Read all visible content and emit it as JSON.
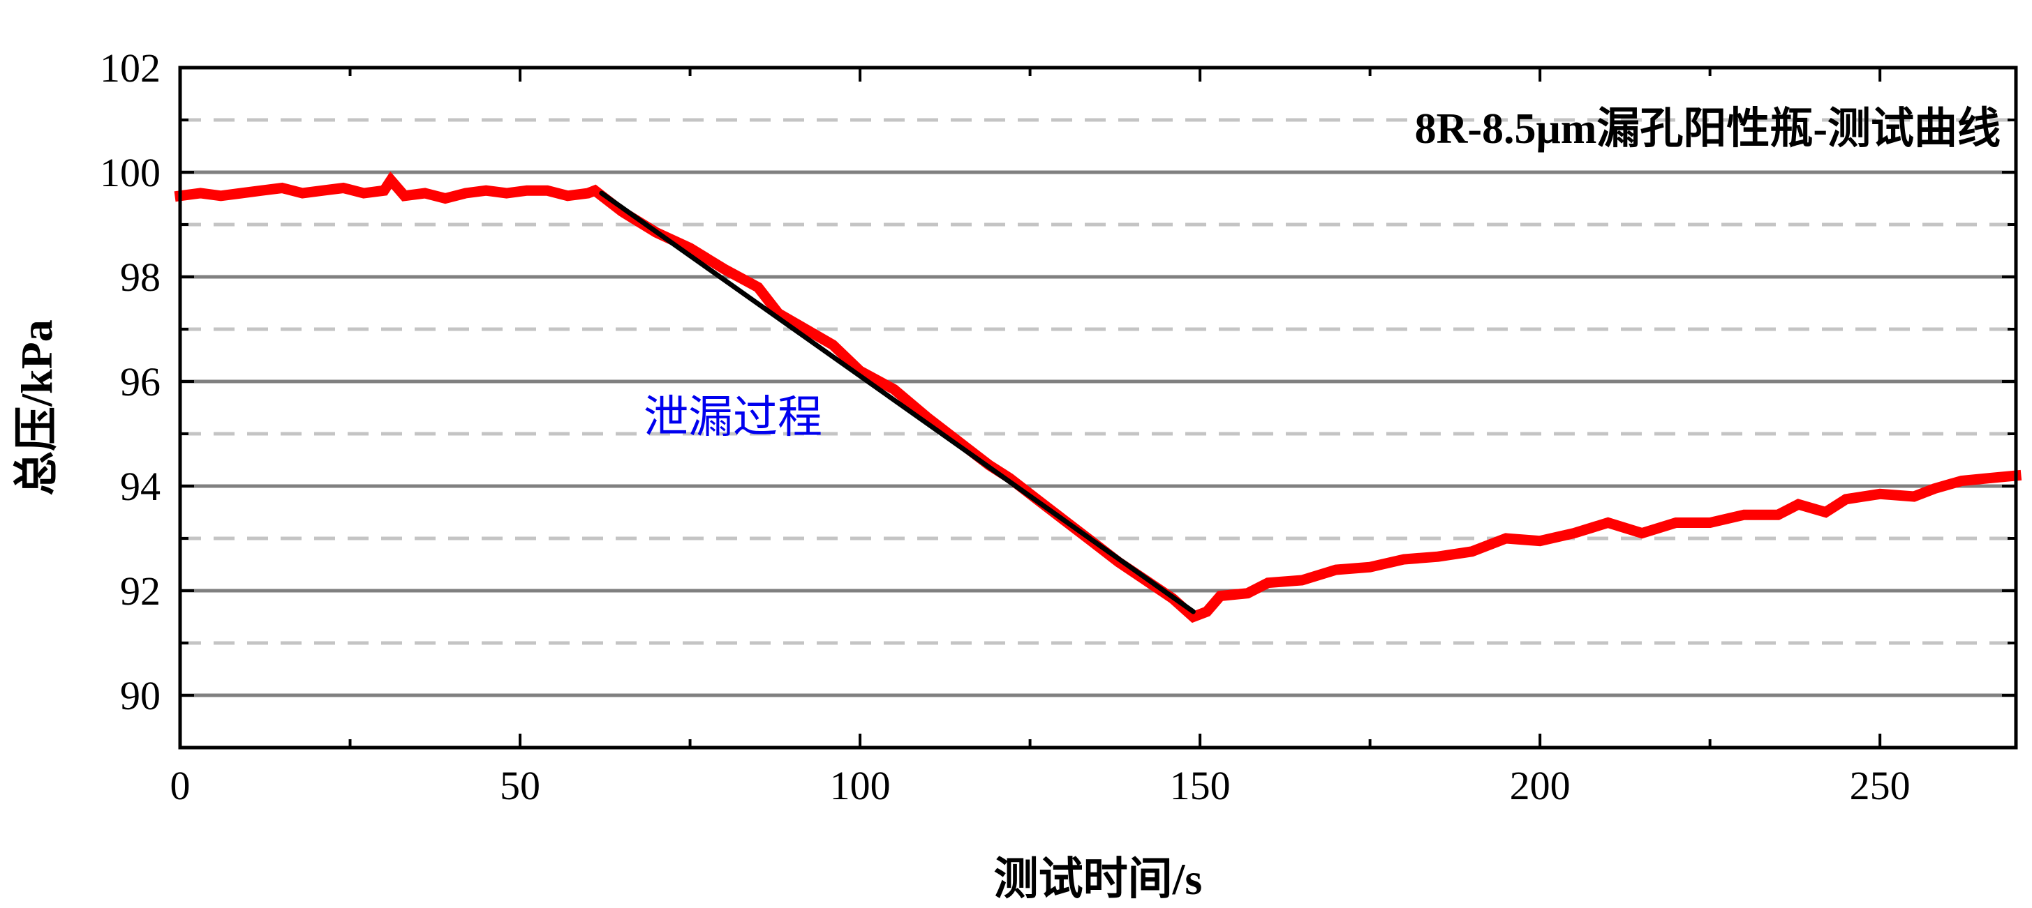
{
  "chart_data": {
    "type": "line",
    "title": "8R-8.5μm漏孔阳性瓶-测试曲线",
    "xlabel": "测试时间/s",
    "ylabel": "总压/kPa",
    "annotation": "泄漏过程",
    "xlim": [
      0,
      270
    ],
    "ylim": [
      89,
      102
    ],
    "xticks": [
      0,
      50,
      100,
      150,
      200,
      250
    ],
    "yticks": [
      90,
      92,
      94,
      96,
      98,
      100,
      102
    ],
    "grid": {
      "major": true,
      "minor_dashed": true
    },
    "series": [
      {
        "type": "line",
        "color": "#ff0000",
        "points": [
          [
            0,
            99.55
          ],
          [
            3,
            99.6
          ],
          [
            6,
            99.55
          ],
          [
            9,
            99.6
          ],
          [
            12,
            99.65
          ],
          [
            15,
            99.7
          ],
          [
            18,
            99.6
          ],
          [
            21,
            99.65
          ],
          [
            24,
            99.7
          ],
          [
            27,
            99.6
          ],
          [
            30,
            99.65
          ],
          [
            31,
            99.85
          ],
          [
            33,
            99.55
          ],
          [
            36,
            99.6
          ],
          [
            39,
            99.5
          ],
          [
            42,
            99.6
          ],
          [
            45,
            99.65
          ],
          [
            48,
            99.6
          ],
          [
            51,
            99.65
          ],
          [
            54,
            99.65
          ],
          [
            57,
            99.55
          ],
          [
            60,
            99.6
          ],
          [
            61,
            99.65
          ],
          [
            65,
            99.25
          ],
          [
            70,
            98.85
          ],
          [
            75,
            98.55
          ],
          [
            80,
            98.15
          ],
          [
            85,
            97.8
          ],
          [
            88,
            97.3
          ],
          [
            92,
            97.0
          ],
          [
            96,
            96.7
          ],
          [
            100,
            96.2
          ],
          [
            105,
            95.85
          ],
          [
            110,
            95.3
          ],
          [
            115,
            94.8
          ],
          [
            119,
            94.4
          ],
          [
            122,
            94.15
          ],
          [
            126,
            93.75
          ],
          [
            130,
            93.35
          ],
          [
            134,
            92.95
          ],
          [
            138,
            92.55
          ],
          [
            142,
            92.2
          ],
          [
            146,
            91.85
          ],
          [
            149,
            91.5
          ],
          [
            151,
            91.6
          ],
          [
            153,
            91.9
          ],
          [
            157,
            91.95
          ],
          [
            160,
            92.15
          ],
          [
            165,
            92.2
          ],
          [
            170,
            92.4
          ],
          [
            175,
            92.45
          ],
          [
            180,
            92.6
          ],
          [
            185,
            92.65
          ],
          [
            190,
            92.75
          ],
          [
            195,
            93.0
          ],
          [
            200,
            92.95
          ],
          [
            205,
            93.1
          ],
          [
            210,
            93.3
          ],
          [
            215,
            93.1
          ],
          [
            220,
            93.3
          ],
          [
            225,
            93.3
          ],
          [
            230,
            93.45
          ],
          [
            235,
            93.45
          ],
          [
            238,
            93.65
          ],
          [
            242,
            93.5
          ],
          [
            245,
            93.75
          ],
          [
            250,
            93.85
          ],
          [
            255,
            93.8
          ],
          [
            258,
            93.95
          ],
          [
            262,
            94.1
          ],
          [
            266,
            94.15
          ],
          [
            270,
            94.2
          ]
        ]
      },
      {
        "type": "fit",
        "color": "#000000",
        "points": [
          [
            62,
            99.6
          ],
          [
            149,
            91.6
          ]
        ]
      }
    ]
  }
}
